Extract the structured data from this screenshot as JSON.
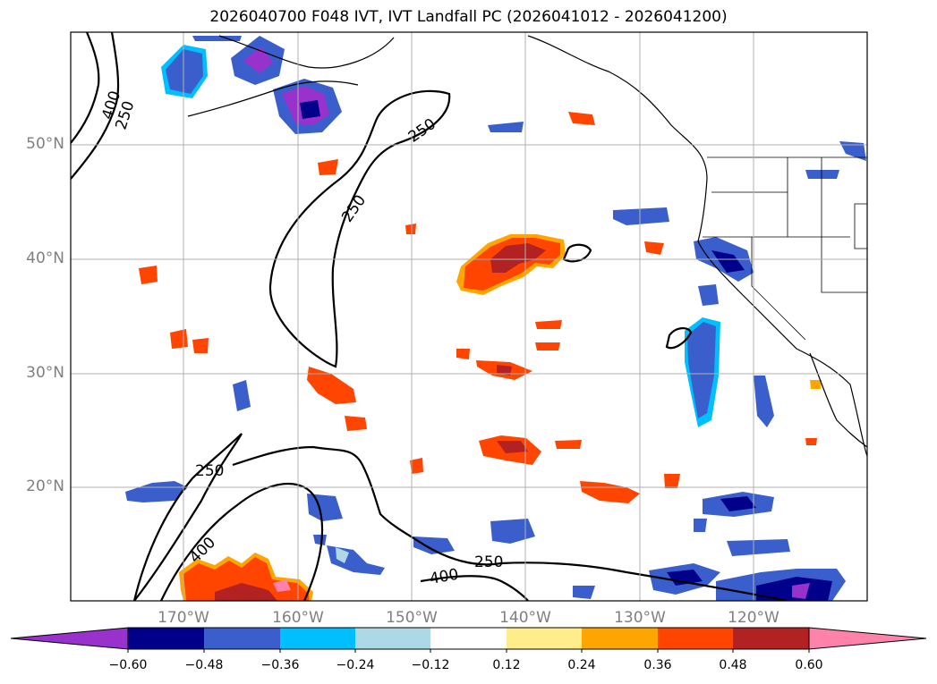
{
  "title": "2026040700 F048 IVT, IVT Landfall PC (2026041012 - 2026041200)",
  "map": {
    "lon_labels": [
      "170°W",
      "160°W",
      "150°W",
      "140°W",
      "130°W",
      "120°W"
    ],
    "lat_labels": [
      "50°N",
      "40°N",
      "30°N",
      "20°N"
    ],
    "contour_labels": [
      "400",
      "250",
      "250",
      "250",
      "250",
      "400",
      "250",
      "400"
    ],
    "label_color": "#7f7f7f"
  },
  "colorbar": {
    "ticks": [
      "−0.60",
      "−0.48",
      "−0.36",
      "−0.24",
      "−0.12",
      "0.12",
      "0.24",
      "0.36",
      "0.48",
      "0.60"
    ],
    "colors": [
      "#9932cc",
      "#00008b",
      "#3a5fcd",
      "#00bfff",
      "#add8e6",
      "#ffffff",
      "#ffec8b",
      "#ffa500",
      "#ff4500",
      "#b22222",
      "#ff82ab"
    ]
  }
}
